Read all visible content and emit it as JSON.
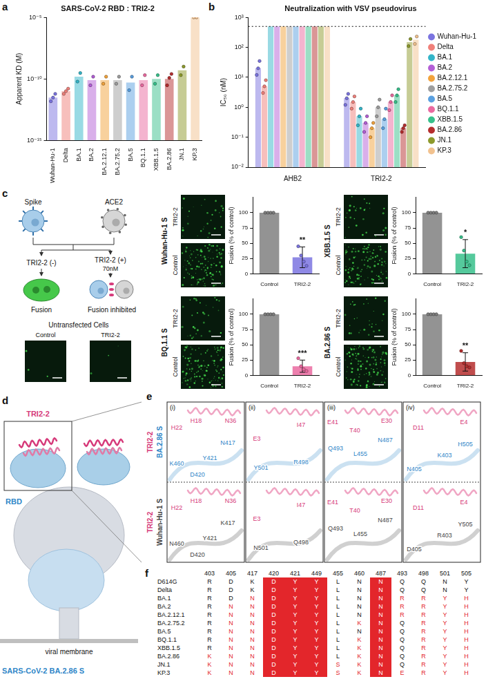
{
  "chart_data": [
    {
      "panel": "a",
      "type": "bar",
      "title": "SARS-CoV-2 RBD : TRI2-2",
      "y_label": "Apparent KD (M)",
      "categories": [
        "Wuhan-Hu-1",
        "Delta",
        "BA.1",
        "BA.2",
        "BA.2.12.1",
        "BA.2.75.2",
        "BA.5",
        "BQ.1.1",
        "XBB.1.5",
        "BA.2.86",
        "JN.1",
        "KP.3"
      ],
      "values": [
        3e-12,
        1e-11,
        1.5e-10,
        8e-11,
        8e-11,
        8e-11,
        5e-11,
        8e-11,
        1e-10,
        1e-10,
        5e-10,
        1e-05
      ],
      "replicates": [
        [
          1.5e-12,
          3e-12,
          6e-12
        ],
        [
          6e-12,
          1e-11,
          1.6e-11
        ],
        [
          6e-11,
          3e-10
        ],
        [
          3e-11,
          1.5e-10
        ],
        [
          4e-11,
          1.5e-10
        ],
        [
          4e-11,
          1.5e-10
        ],
        [
          1.2e-11,
          1.5e-10
        ],
        [
          3e-11,
          2e-10
        ],
        [
          4e-11,
          2e-10
        ],
        [
          3e-11,
          1.2e-10,
          2.5e-10
        ],
        [
          2e-10,
          1e-09
        ],
        [
          1e-05,
          1e-05
        ]
      ],
      "colors": [
        "#7b74e0",
        "#f0807a",
        "#33b5c9",
        "#b35fd6",
        "#f2a33c",
        "#9e9e9e",
        "#5aa0e0",
        "#ea6aa0",
        "#37c08b",
        "#b52e2e",
        "#8d9a2c",
        "#f2c28f"
      ],
      "log": "y",
      "ylim": [
        1e-15,
        1e-05
      ],
      "yticks": [
        {
          "value": 1e-15,
          "label": "10⁻¹⁵"
        },
        {
          "value": 1e-10,
          "label": "10⁻¹⁰"
        },
        {
          "value": 1e-05,
          "label": "10⁻⁵"
        }
      ],
      "grid": false
    },
    {
      "panel": "b",
      "type": "bar",
      "title": "Neutralization with VSV pseudovirus",
      "y_label": "IC₅₀ (nM)",
      "categories": [
        "AHB2",
        "TRI2-2"
      ],
      "series": [
        {
          "name": "Wuhan-Hu-1",
          "color": "#7b74e0",
          "values": [
            20,
            2
          ],
          "replicates": [
            [
              12,
              20,
              35
            ],
            [
              1.2,
              2,
              2.8
            ]
          ]
        },
        {
          "name": "Delta",
          "color": "#f0807a",
          "values": [
            5,
            1.5
          ],
          "replicates": [
            [
              3,
              5,
              8
            ],
            [
              0.9,
              1.5,
              2.3
            ]
          ]
        },
        {
          "name": "BA.1",
          "color": "#33b5c9",
          "values": [
            500,
            0.5
          ],
          "replicates": [
            [],
            [
              0.25,
              0.5,
              0.9
            ]
          ]
        },
        {
          "name": "BA.2",
          "color": "#b35fd6",
          "values": [
            500,
            0.3
          ],
          "replicates": [
            [],
            [
              0.15,
              0.3,
              0.5
            ]
          ]
        },
        {
          "name": "BA.2.12.1",
          "color": "#f2a33c",
          "values": [
            500,
            0.2
          ],
          "replicates": [
            [],
            [
              0.1,
              0.2,
              0.3
            ]
          ]
        },
        {
          "name": "BA.2.75.2",
          "color": "#9e9e9e",
          "values": [
            500,
            1
          ],
          "replicates": [
            [],
            [
              0.5,
              1,
              1.8
            ]
          ]
        },
        {
          "name": "BA.5",
          "color": "#5aa0e0",
          "values": [
            500,
            0.4
          ],
          "replicates": [
            [],
            [
              0.2,
              0.4,
              0.9
            ]
          ]
        },
        {
          "name": "BQ.1.1",
          "color": "#ea6aa0",
          "values": [
            500,
            1.5
          ],
          "replicates": [
            [],
            [
              0.8,
              1.5,
              2.5
            ]
          ]
        },
        {
          "name": "XBB.1.5",
          "color": "#37c08b",
          "values": [
            500,
            2.5
          ],
          "replicates": [
            [],
            [
              1.5,
              2.5,
              4
            ]
          ]
        },
        {
          "name": "BA.2.86",
          "color": "#b52e2e",
          "values": [
            500,
            0.2
          ],
          "replicates": [
            [],
            [
              0.15,
              0.2,
              0.25
            ]
          ]
        },
        {
          "name": "JN.1",
          "color": "#8d9a2c",
          "values": [
            500,
            150
          ],
          "replicates": [
            [],
            [
              110,
              190
            ]
          ]
        },
        {
          "name": "KP.3",
          "color": "#f2c28f",
          "values": [
            500,
            180
          ],
          "replicates": [
            [],
            [
              130,
              230
            ]
          ]
        }
      ],
      "log": "y",
      "ylim": [
        0.01,
        1000
      ],
      "yticks": [
        {
          "value": 0.01,
          "label": "10⁻²"
        },
        {
          "value": 0.1,
          "label": "10⁻¹"
        },
        {
          "value": 1,
          "label": "10⁰"
        },
        {
          "value": 10,
          "label": "10¹"
        },
        {
          "value": 100,
          "label": "10²"
        },
        {
          "value": 1000,
          "label": "10³"
        }
      ],
      "grid": false,
      "legend": "right",
      "threshold": {
        "value": 500,
        "line_style": "dotted"
      }
    },
    {
      "type": "bar",
      "title": "Wuhan-Hu-1 S",
      "y_label": "Fusion (% of control)",
      "categories": [
        "Control",
        "TRI2-2"
      ],
      "values": [
        100,
        27
      ],
      "errors": [
        0,
        17
      ],
      "replicates": [
        [
          100,
          100,
          100,
          100
        ],
        [
          45,
          30,
          20,
          13
        ]
      ],
      "significance": [
        null,
        "**"
      ],
      "colors": [
        "#808080",
        "#7b74e0"
      ],
      "ylim": [
        0,
        125
      ],
      "yticks": [
        0,
        25,
        50,
        75,
        100
      ],
      "grid": false
    },
    {
      "type": "bar",
      "title": "XBB.1.5 S",
      "y_label": "Fusion (% of control)",
      "categories": [
        "Control",
        "TRI2-2"
      ],
      "values": [
        100,
        33
      ],
      "errors": [
        0,
        23
      ],
      "replicates": [
        [
          100,
          100,
          100,
          100
        ],
        [
          60,
          38,
          20,
          14
        ]
      ],
      "significance": [
        null,
        "*"
      ],
      "colors": [
        "#808080",
        "#37c08b"
      ],
      "ylim": [
        0,
        125
      ],
      "yticks": [
        0,
        25,
        50,
        75,
        100
      ],
      "grid": false
    },
    {
      "type": "bar",
      "title": "BQ.1.1 S",
      "y_label": "Fusion (% of control)",
      "categories": [
        "Control",
        "TRI2-2"
      ],
      "values": [
        100,
        15
      ],
      "errors": [
        0,
        10
      ],
      "replicates": [
        [
          100,
          100,
          100,
          100
        ],
        [
          28,
          15,
          10,
          7
        ]
      ],
      "significance": [
        null,
        "***"
      ],
      "colors": [
        "#808080",
        "#ea6aa0"
      ],
      "ylim": [
        0,
        125
      ],
      "yticks": [
        0,
        25,
        50,
        75,
        100
      ],
      "grid": false
    },
    {
      "type": "bar",
      "title": "BA.2.86 S",
      "y_label": "Fusion (% of control)",
      "categories": [
        "Control",
        "TRI2-2"
      ],
      "values": [
        100,
        22
      ],
      "errors": [
        0,
        15
      ],
      "replicates": [
        [
          100,
          100,
          100,
          100
        ],
        [
          40,
          20,
          15,
          13
        ]
      ],
      "significance": [
        null,
        "**"
      ],
      "colors": [
        "#808080",
        "#b52e2e"
      ],
      "ylim": [
        0,
        125
      ],
      "yticks": [
        0,
        25,
        50,
        75,
        100
      ],
      "grid": false
    }
  ],
  "schematic_c": {
    "letter": "c",
    "spike": "Spike",
    "ace2": "ACE2",
    "without": "TRI2-2 (-)",
    "with": "TRI2-2 (+)",
    "dose": "70nM",
    "fusion": "Fusion",
    "inhibited": "Fusion inhibited",
    "untransfected": "Untransfected Cells",
    "image_labels": [
      "Control",
      "TRI2-2"
    ]
  },
  "panel_d": {
    "letter": "d",
    "binder": "TRI2-2",
    "domain": "RBD",
    "spike": "SARS-CoV-2 BA.2.86 S",
    "membrane": "viral membrane"
  },
  "panel_e": {
    "letter": "e",
    "rows": [
      {
        "binder": "TRI2-2",
        "spike": "BA.2.86 S"
      },
      {
        "binder": "TRI2-2",
        "spike": "Wuhan-Hu-1 S"
      }
    ],
    "boxes": [
      {
        "numeral": "(i)",
        "binder": [
          "H22",
          "H18",
          "N36"
        ],
        "spike": [
          [
            "N417",
            "Y421",
            "K460",
            "D420"
          ],
          [
            "K417",
            "Y421",
            "N460",
            "D420"
          ]
        ]
      },
      {
        "numeral": "(ii)",
        "binder": [
          "E3",
          "I47"
        ],
        "spike": [
          [
            "Y501",
            "R498"
          ],
          [
            "N501",
            "Q498"
          ]
        ]
      },
      {
        "numeral": "(iii)",
        "binder": [
          "E41",
          "T40",
          "E30"
        ],
        "spike": [
          [
            "Q493",
            "L455",
            "N487"
          ],
          [
            "Q493",
            "L455",
            "N487"
          ]
        ]
      },
      {
        "numeral": "(iv)",
        "binder": [
          "D11",
          "E4"
        ],
        "spike": [
          [
            "N405",
            "K403",
            "H505"
          ],
          [
            "D405",
            "R403",
            "Y505"
          ]
        ]
      }
    ]
  },
  "table": {
    "letter": "f",
    "columns": [
      403,
      405,
      417,
      420,
      421,
      449,
      455,
      460,
      487,
      493,
      498,
      501,
      505
    ],
    "highlighted": [
      420,
      421,
      449,
      487
    ],
    "rows": [
      {
        "name": "D614G",
        "residues": [
          "R",
          "D",
          "K",
          "D",
          "Y",
          "Y",
          "L",
          "N",
          "N",
          "Q",
          "Q",
          "N",
          "Y"
        ]
      },
      {
        "name": "Delta",
        "residues": [
          "R",
          "D",
          "K",
          "D",
          "Y",
          "Y",
          "L",
          "N",
          "N",
          "Q",
          "Q",
          "N",
          "Y"
        ]
      },
      {
        "name": "BA.1",
        "residues": [
          "R",
          "D",
          "N",
          "D",
          "Y",
          "Y",
          "L",
          "N",
          "N",
          "R",
          "R",
          "Y",
          "H"
        ]
      },
      {
        "name": "BA.2",
        "residues": [
          "R",
          "N",
          "N",
          "D",
          "Y",
          "Y",
          "L",
          "N",
          "N",
          "R",
          "R",
          "Y",
          "H"
        ]
      },
      {
        "name": "BA.2.12.1",
        "residues": [
          "R",
          "N",
          "N",
          "D",
          "Y",
          "Y",
          "L",
          "N",
          "N",
          "R",
          "R",
          "Y",
          "H"
        ]
      },
      {
        "name": "BA.2.75.2",
        "residues": [
          "R",
          "N",
          "N",
          "D",
          "Y",
          "Y",
          "L",
          "K",
          "N",
          "Q",
          "R",
          "Y",
          "H"
        ]
      },
      {
        "name": "BA.5",
        "residues": [
          "R",
          "N",
          "N",
          "D",
          "Y",
          "Y",
          "L",
          "N",
          "N",
          "Q",
          "R",
          "Y",
          "H"
        ]
      },
      {
        "name": "BQ.1.1",
        "residues": [
          "R",
          "N",
          "N",
          "D",
          "Y",
          "Y",
          "L",
          "K",
          "N",
          "Q",
          "R",
          "Y",
          "H"
        ]
      },
      {
        "name": "XBB.1.5",
        "residues": [
          "R",
          "N",
          "N",
          "D",
          "Y",
          "Y",
          "L",
          "K",
          "N",
          "Q",
          "R",
          "Y",
          "H"
        ]
      },
      {
        "name": "BA.2.86",
        "residues": [
          "K",
          "N",
          "N",
          "D",
          "Y",
          "Y",
          "L",
          "K",
          "N",
          "Q",
          "R",
          "Y",
          "H"
        ]
      },
      {
        "name": "JN.1",
        "residues": [
          "K",
          "N",
          "N",
          "D",
          "Y",
          "Y",
          "S",
          "K",
          "N",
          "Q",
          "R",
          "Y",
          "H"
        ]
      },
      {
        "name": "KP.3",
        "residues": [
          "K",
          "N",
          "N",
          "D",
          "Y",
          "Y",
          "S",
          "K",
          "N",
          "E",
          "R",
          "Y",
          "H"
        ]
      }
    ]
  }
}
